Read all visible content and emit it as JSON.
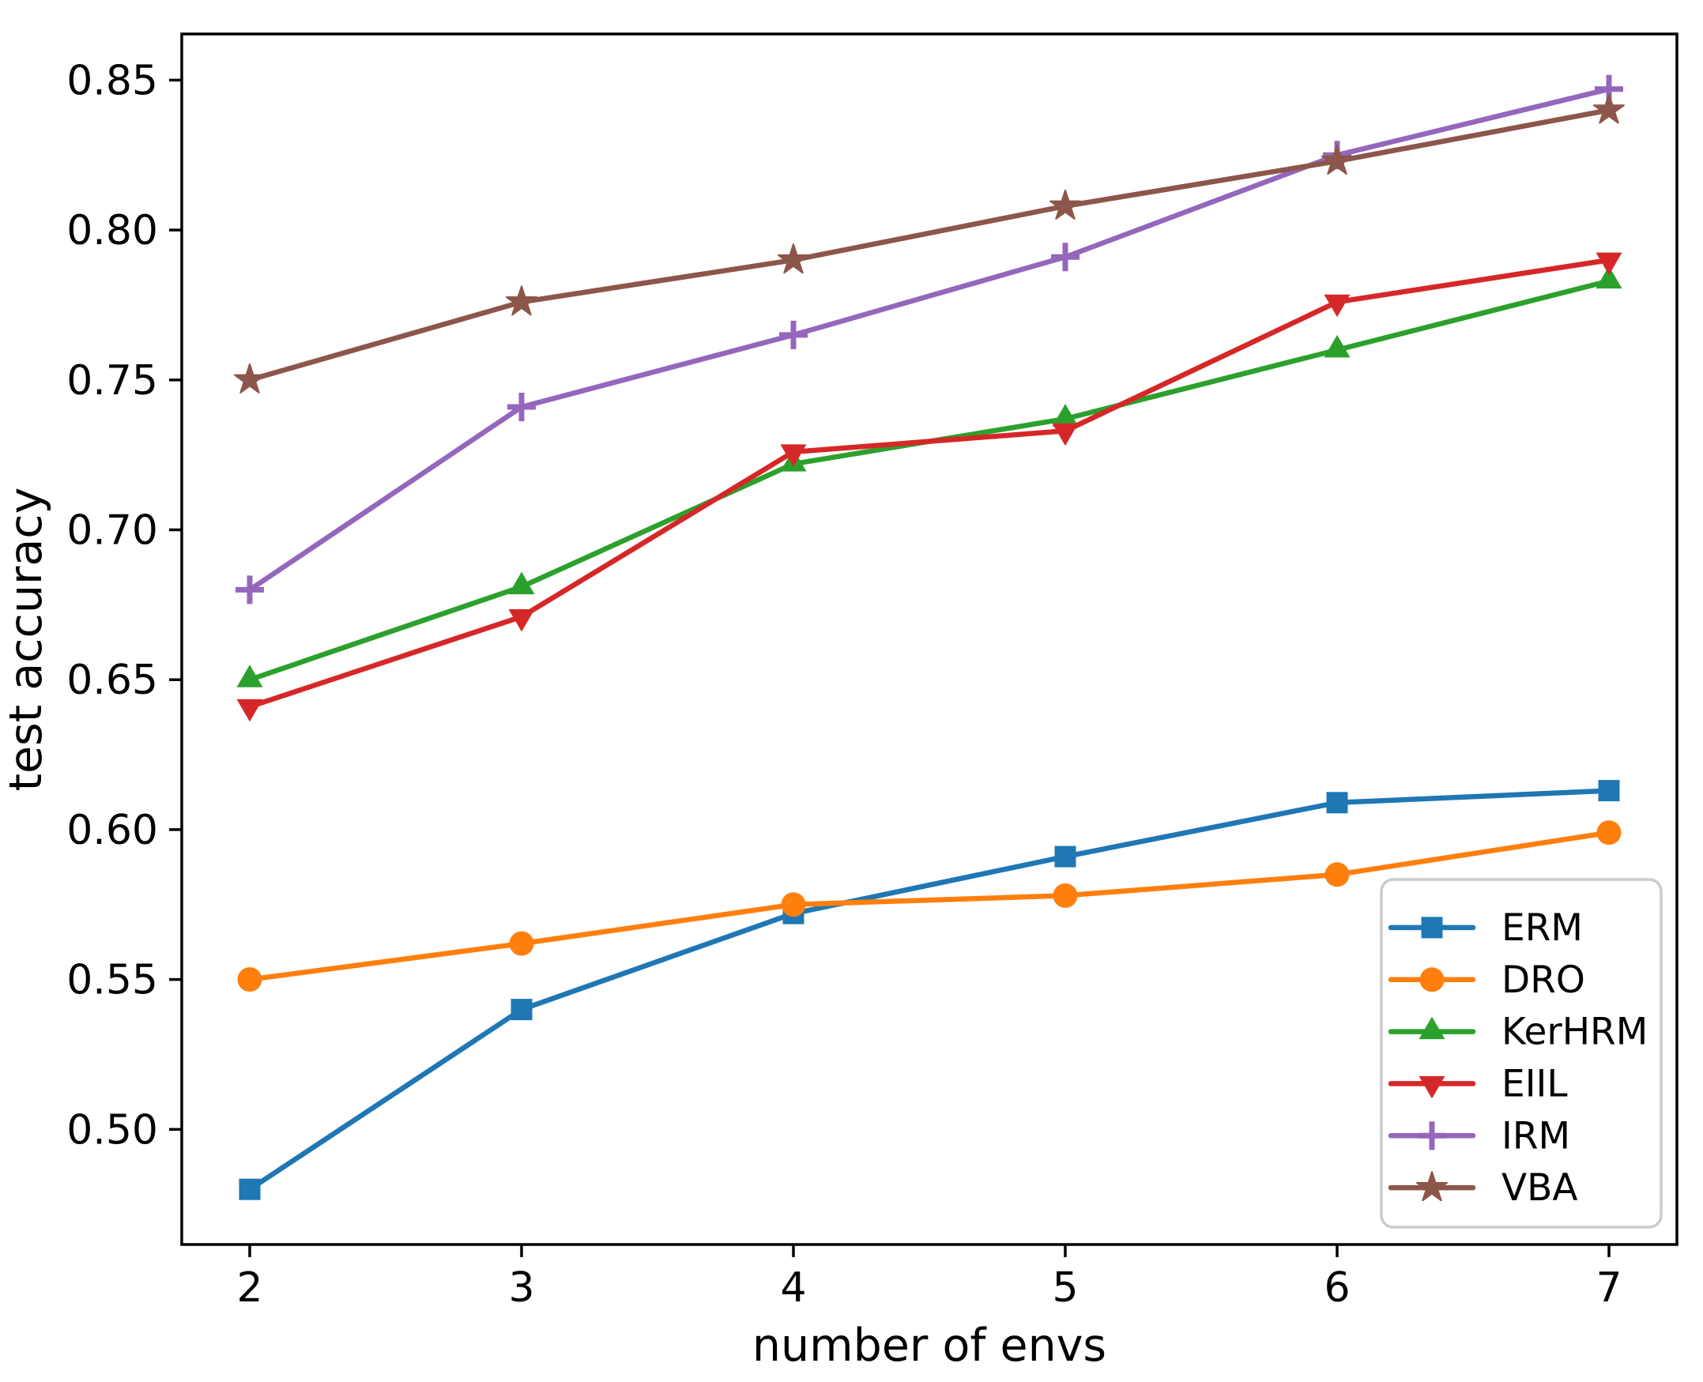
{
  "figure": {
    "background": "#ffffff",
    "axes_color": "#000000",
    "legend_border_color": "#cccccc",
    "legend_background": "#ffffff"
  },
  "chart_data": {
    "type": "line",
    "title": "",
    "xlabel": "number of envs",
    "ylabel": "test accuracy",
    "grid": false,
    "legend_position": "lower right",
    "x": [
      2,
      3,
      4,
      5,
      6,
      7
    ],
    "xlim": [
      1.75,
      7.25
    ],
    "ylim": [
      0.4616,
      0.8654
    ],
    "xtick_labels": [
      "2",
      "3",
      "4",
      "5",
      "6",
      "7"
    ],
    "xtick_values": [
      2,
      3,
      4,
      5,
      6,
      7
    ],
    "ytick_labels": [
      "0.50",
      "0.55",
      "0.60",
      "0.65",
      "0.70",
      "0.75",
      "0.80",
      "0.85"
    ],
    "ytick_values": [
      0.5,
      0.55,
      0.6,
      0.65,
      0.7,
      0.75,
      0.8,
      0.85
    ],
    "series": [
      {
        "name": "ERM",
        "color": "#1f77b4",
        "marker": "square",
        "values": [
          0.48,
          0.54,
          0.572,
          0.591,
          0.609,
          0.613
        ]
      },
      {
        "name": "DRO",
        "color": "#ff7f0e",
        "marker": "circle",
        "values": [
          0.55,
          0.562,
          0.575,
          0.578,
          0.585,
          0.599
        ]
      },
      {
        "name": "KerHRM",
        "color": "#2ca02c",
        "marker": "triangle-up",
        "values": [
          0.65,
          0.681,
          0.722,
          0.737,
          0.76,
          0.783
        ]
      },
      {
        "name": "EIIL",
        "color": "#d62728",
        "marker": "triangle-down",
        "values": [
          0.641,
          0.671,
          0.726,
          0.733,
          0.776,
          0.79
        ]
      },
      {
        "name": "IRM",
        "color": "#9467bd",
        "marker": "plus",
        "values": [
          0.68,
          0.741,
          0.765,
          0.791,
          0.825,
          0.847
        ]
      },
      {
        "name": "VBA",
        "color": "#8c564b",
        "marker": "star",
        "values": [
          0.75,
          0.776,
          0.79,
          0.808,
          0.823,
          0.84
        ]
      }
    ]
  }
}
